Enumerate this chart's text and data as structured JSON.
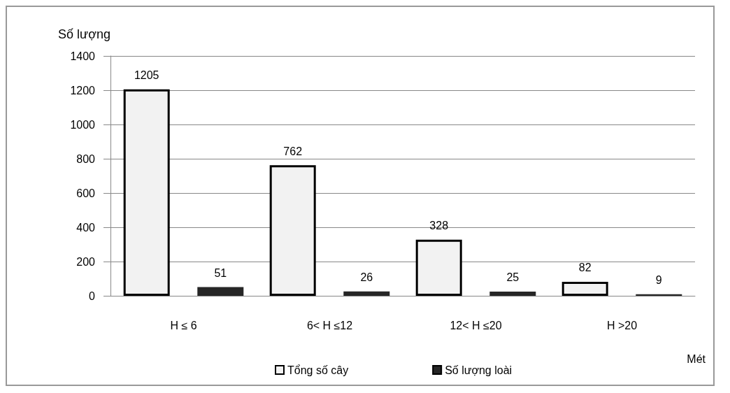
{
  "chart_data": {
    "type": "bar",
    "ylabel": "Số lượng",
    "xlabel": "Mét",
    "categories": [
      "H ≤ 6",
      "6< H ≤12",
      "12< H ≤20",
      "H >20"
    ],
    "series": [
      {
        "name": "Tổng số cây",
        "color": "#f2f2f2",
        "values": [
          1205,
          762,
          328,
          82
        ]
      },
      {
        "name": "Số lượng loài",
        "color": "#262626",
        "values": [
          51,
          26,
          25,
          9
        ]
      }
    ],
    "ylim": [
      0,
      1400
    ],
    "yticks": [
      0,
      200,
      400,
      600,
      800,
      1000,
      1200,
      1400
    ],
    "grid": "y",
    "legend": "bottom",
    "data_labels": true
  }
}
